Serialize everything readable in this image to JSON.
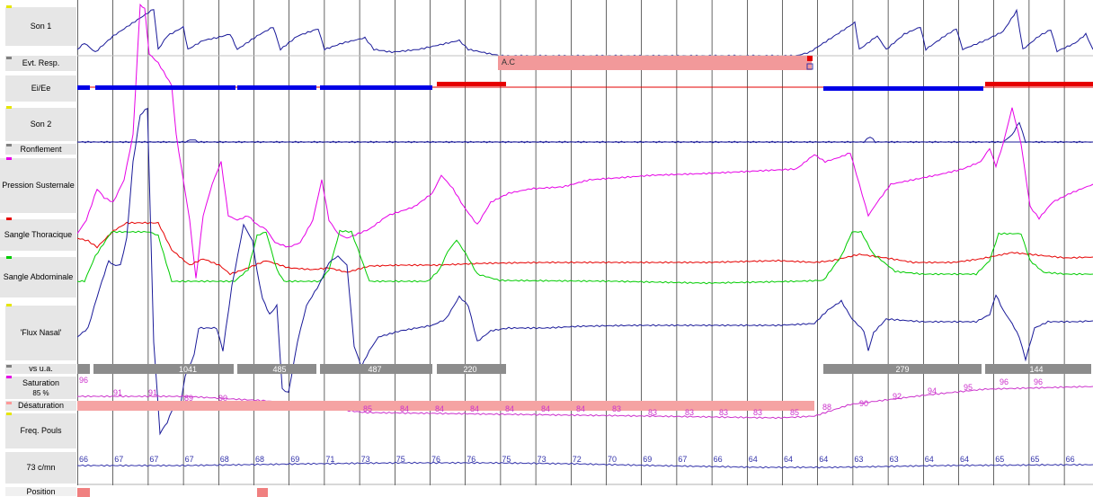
{
  "channels": [
    {
      "label": "Son 1",
      "color": "#e6e600"
    },
    {
      "label": "Evt. Resp.",
      "color": "#808080"
    },
    {
      "label": "Ei/Ee",
      "color": ""
    },
    {
      "label": "Son 2",
      "color": "#e6e600"
    },
    {
      "label": "Ronflement",
      "color": "#808080"
    },
    {
      "label": "Pression Susternale",
      "color": "#e600e6"
    },
    {
      "label": "Sangle Thoracique",
      "color": "#e60000"
    },
    {
      "label": "Sangle Abdominale",
      "color": "#00cc00"
    },
    {
      "label": "'Flux Nasal'",
      "color": "#e6e600"
    },
    {
      "label": "vs u.a.",
      "color": "#808080"
    },
    {
      "label": "Saturation",
      "color": "#e600e6"
    },
    {
      "label": "Désaturation",
      "color": "#ff9999"
    },
    {
      "label": "Freq. Pouls",
      "color": "#e6e600"
    },
    {
      "label": "Position",
      "color": ""
    }
  ],
  "saturation_current": "85 %",
  "pulse_current": "73 c/mn",
  "event_label": "A.C",
  "vs_values": [
    "1041",
    "485",
    "487",
    "220",
    "279",
    "144"
  ],
  "saturation_values": [
    "96",
    "91",
    "91",
    "89",
    "90",
    "85",
    "84",
    "84",
    "84",
    "84",
    "84",
    "84",
    "83",
    "83",
    "83",
    "83",
    "83",
    "85",
    "88",
    "90",
    "92",
    "94",
    "95",
    "96",
    "96"
  ],
  "pulse_values": [
    "66",
    "67",
    "67",
    "67",
    "68",
    "68",
    "69",
    "71",
    "73",
    "75",
    "76",
    "76",
    "75",
    "73",
    "72",
    "70",
    "69",
    "67",
    "66",
    "64",
    "64",
    "64",
    "63",
    "63",
    "64",
    "64",
    "65",
    "65",
    "66"
  ],
  "colors": {
    "son1": "#1a1a99",
    "eiee_blue": "#0000e6",
    "eiee_red": "#e60000",
    "pression": "#e600e6",
    "thorax": "#e60000",
    "abdomen": "#00cc00",
    "flux": "#1a1a99",
    "vs_bar": "#8c8c8c",
    "event_bar": "#f2999a",
    "desat_bar": "#f5a3a3",
    "saturation": "#cc33cc",
    "pulse": "#3333aa",
    "grid": "#000000"
  }
}
